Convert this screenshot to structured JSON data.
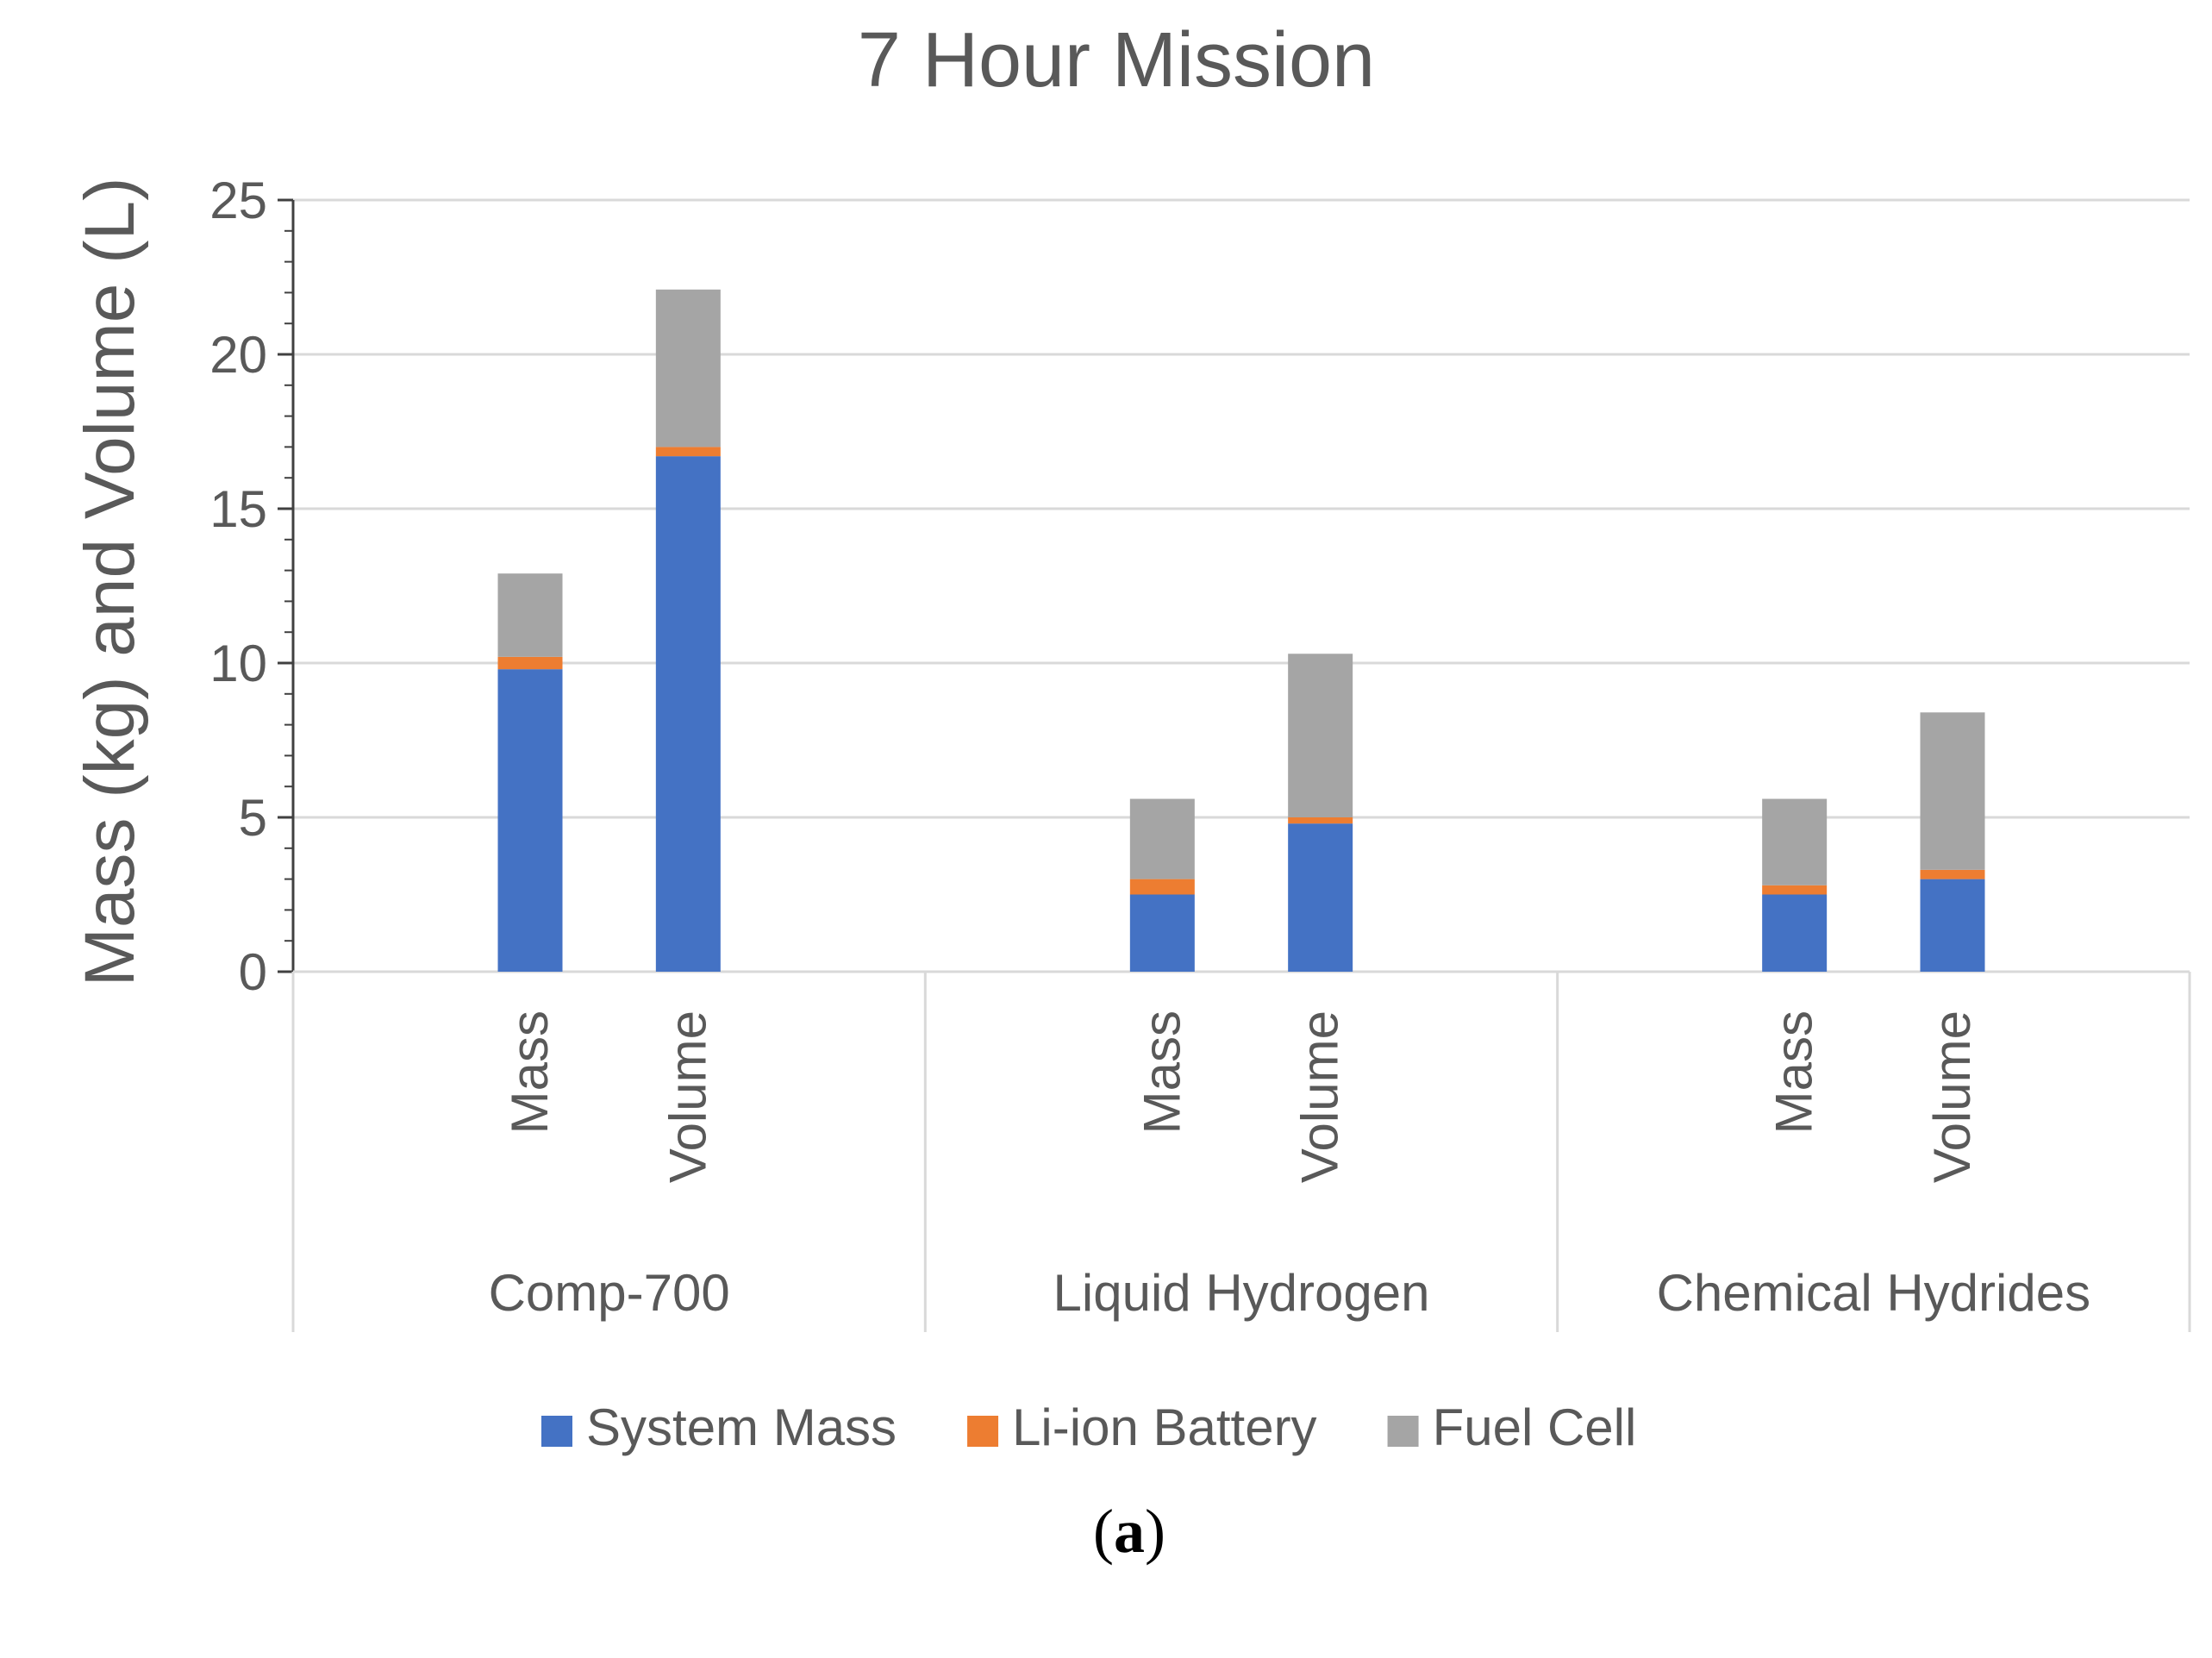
{
  "chart_data": {
    "type": "bar",
    "stacked": true,
    "title": "7 Hour Mission",
    "xlabel": "",
    "ylabel": "Mass (kg) and Volume (L)",
    "ylim": [
      0,
      25
    ],
    "yticks": [
      0,
      5,
      10,
      15,
      20,
      25
    ],
    "grid": true,
    "legend_position": "bottom",
    "groups": [
      {
        "label": "Comp-700",
        "categories": [
          "Mass",
          "Volume"
        ]
      },
      {
        "label": "Liquid Hydrogen",
        "categories": [
          "Mass",
          "Volume"
        ]
      },
      {
        "label": "Chemical Hydrides",
        "categories": [
          "Mass",
          "Volume"
        ]
      }
    ],
    "series": [
      {
        "name": "System Mass",
        "color": "#4472C4",
        "values": [
          9.8,
          16.7,
          2.5,
          4.8,
          2.5,
          3.0
        ]
      },
      {
        "name": "Li-ion Battery",
        "color": "#ED7D31",
        "values": [
          0.4,
          0.3,
          0.5,
          0.2,
          0.3,
          0.3
        ]
      },
      {
        "name": "Fuel Cell",
        "color": "#A5A5A5",
        "values": [
          2.7,
          5.1,
          2.6,
          5.3,
          2.8,
          5.1
        ]
      }
    ]
  },
  "caption": {
    "open": "(",
    "letter": "a",
    "close": ")"
  }
}
